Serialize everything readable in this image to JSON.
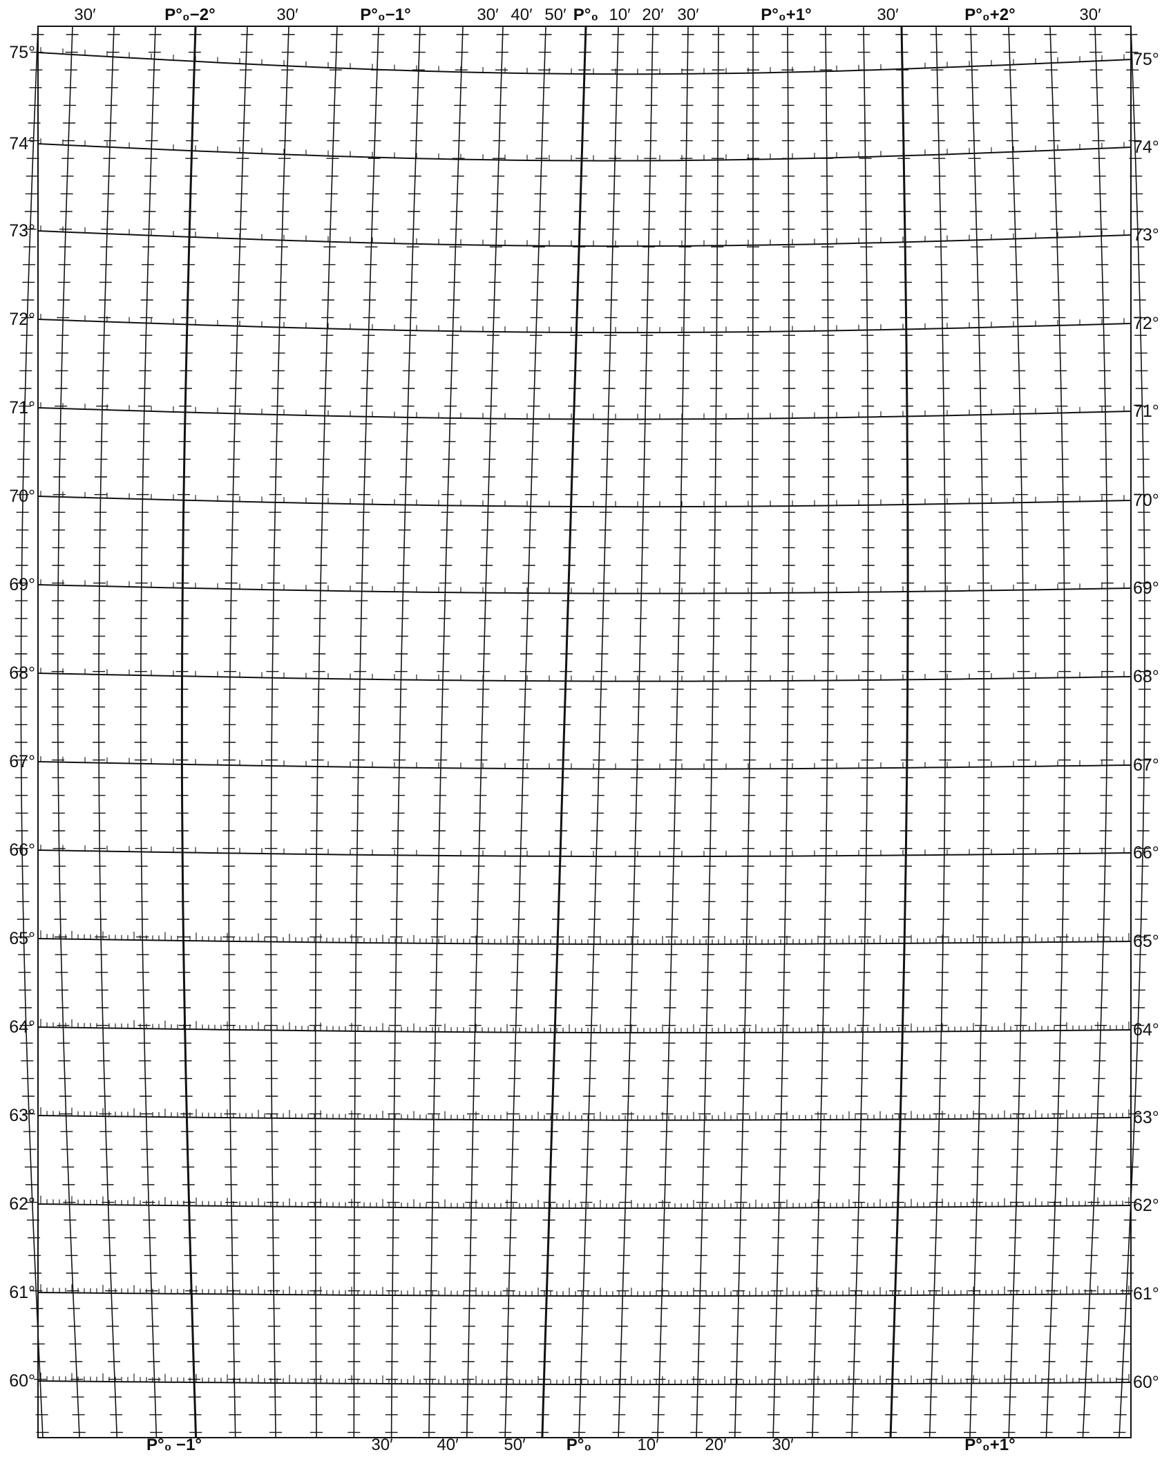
{
  "chart_data": {
    "type": "diagram",
    "grid": true,
    "line_color": "#111111",
    "background": "#ffffff",
    "latitude_labels": [
      "60°",
      "61°",
      "62°",
      "63°",
      "64°",
      "65°",
      "66°",
      "67°",
      "68°",
      "69°",
      "70°",
      "71°",
      "72°",
      "73°",
      "74°",
      "75°"
    ],
    "top_labels": [
      {
        "text": "30′",
        "bold": false
      },
      {
        "text": "P°₀−2°",
        "bold": true
      },
      {
        "text": "30′",
        "bold": false
      },
      {
        "text": "P°₀−1°",
        "bold": true
      },
      {
        "text": "30′",
        "bold": false
      },
      {
        "text": "40′",
        "bold": false
      },
      {
        "text": "50′",
        "bold": false
      },
      {
        "text": "P°₀",
        "bold": true
      },
      {
        "text": "10′",
        "bold": false
      },
      {
        "text": "20′",
        "bold": false
      },
      {
        "text": "30′",
        "bold": false
      },
      {
        "text": "P°₀+1°",
        "bold": true
      },
      {
        "text": "30′",
        "bold": false
      },
      {
        "text": "P°₀+2°",
        "bold": true
      },
      {
        "text": "30′",
        "bold": false
      }
    ],
    "bottom_labels": [
      {
        "text": "P°₀ −1°",
        "bold": true
      },
      {
        "text": "30′",
        "bold": false
      },
      {
        "text": "40′",
        "bold": false
      },
      {
        "text": "50′",
        "bold": false
      },
      {
        "text": "P°₀",
        "bold": true
      },
      {
        "text": "10′",
        "bold": false
      },
      {
        "text": "20′",
        "bold": false
      },
      {
        "text": "30′",
        "bold": false
      },
      {
        "text": "P°₀+1°",
        "bold": true
      }
    ]
  }
}
